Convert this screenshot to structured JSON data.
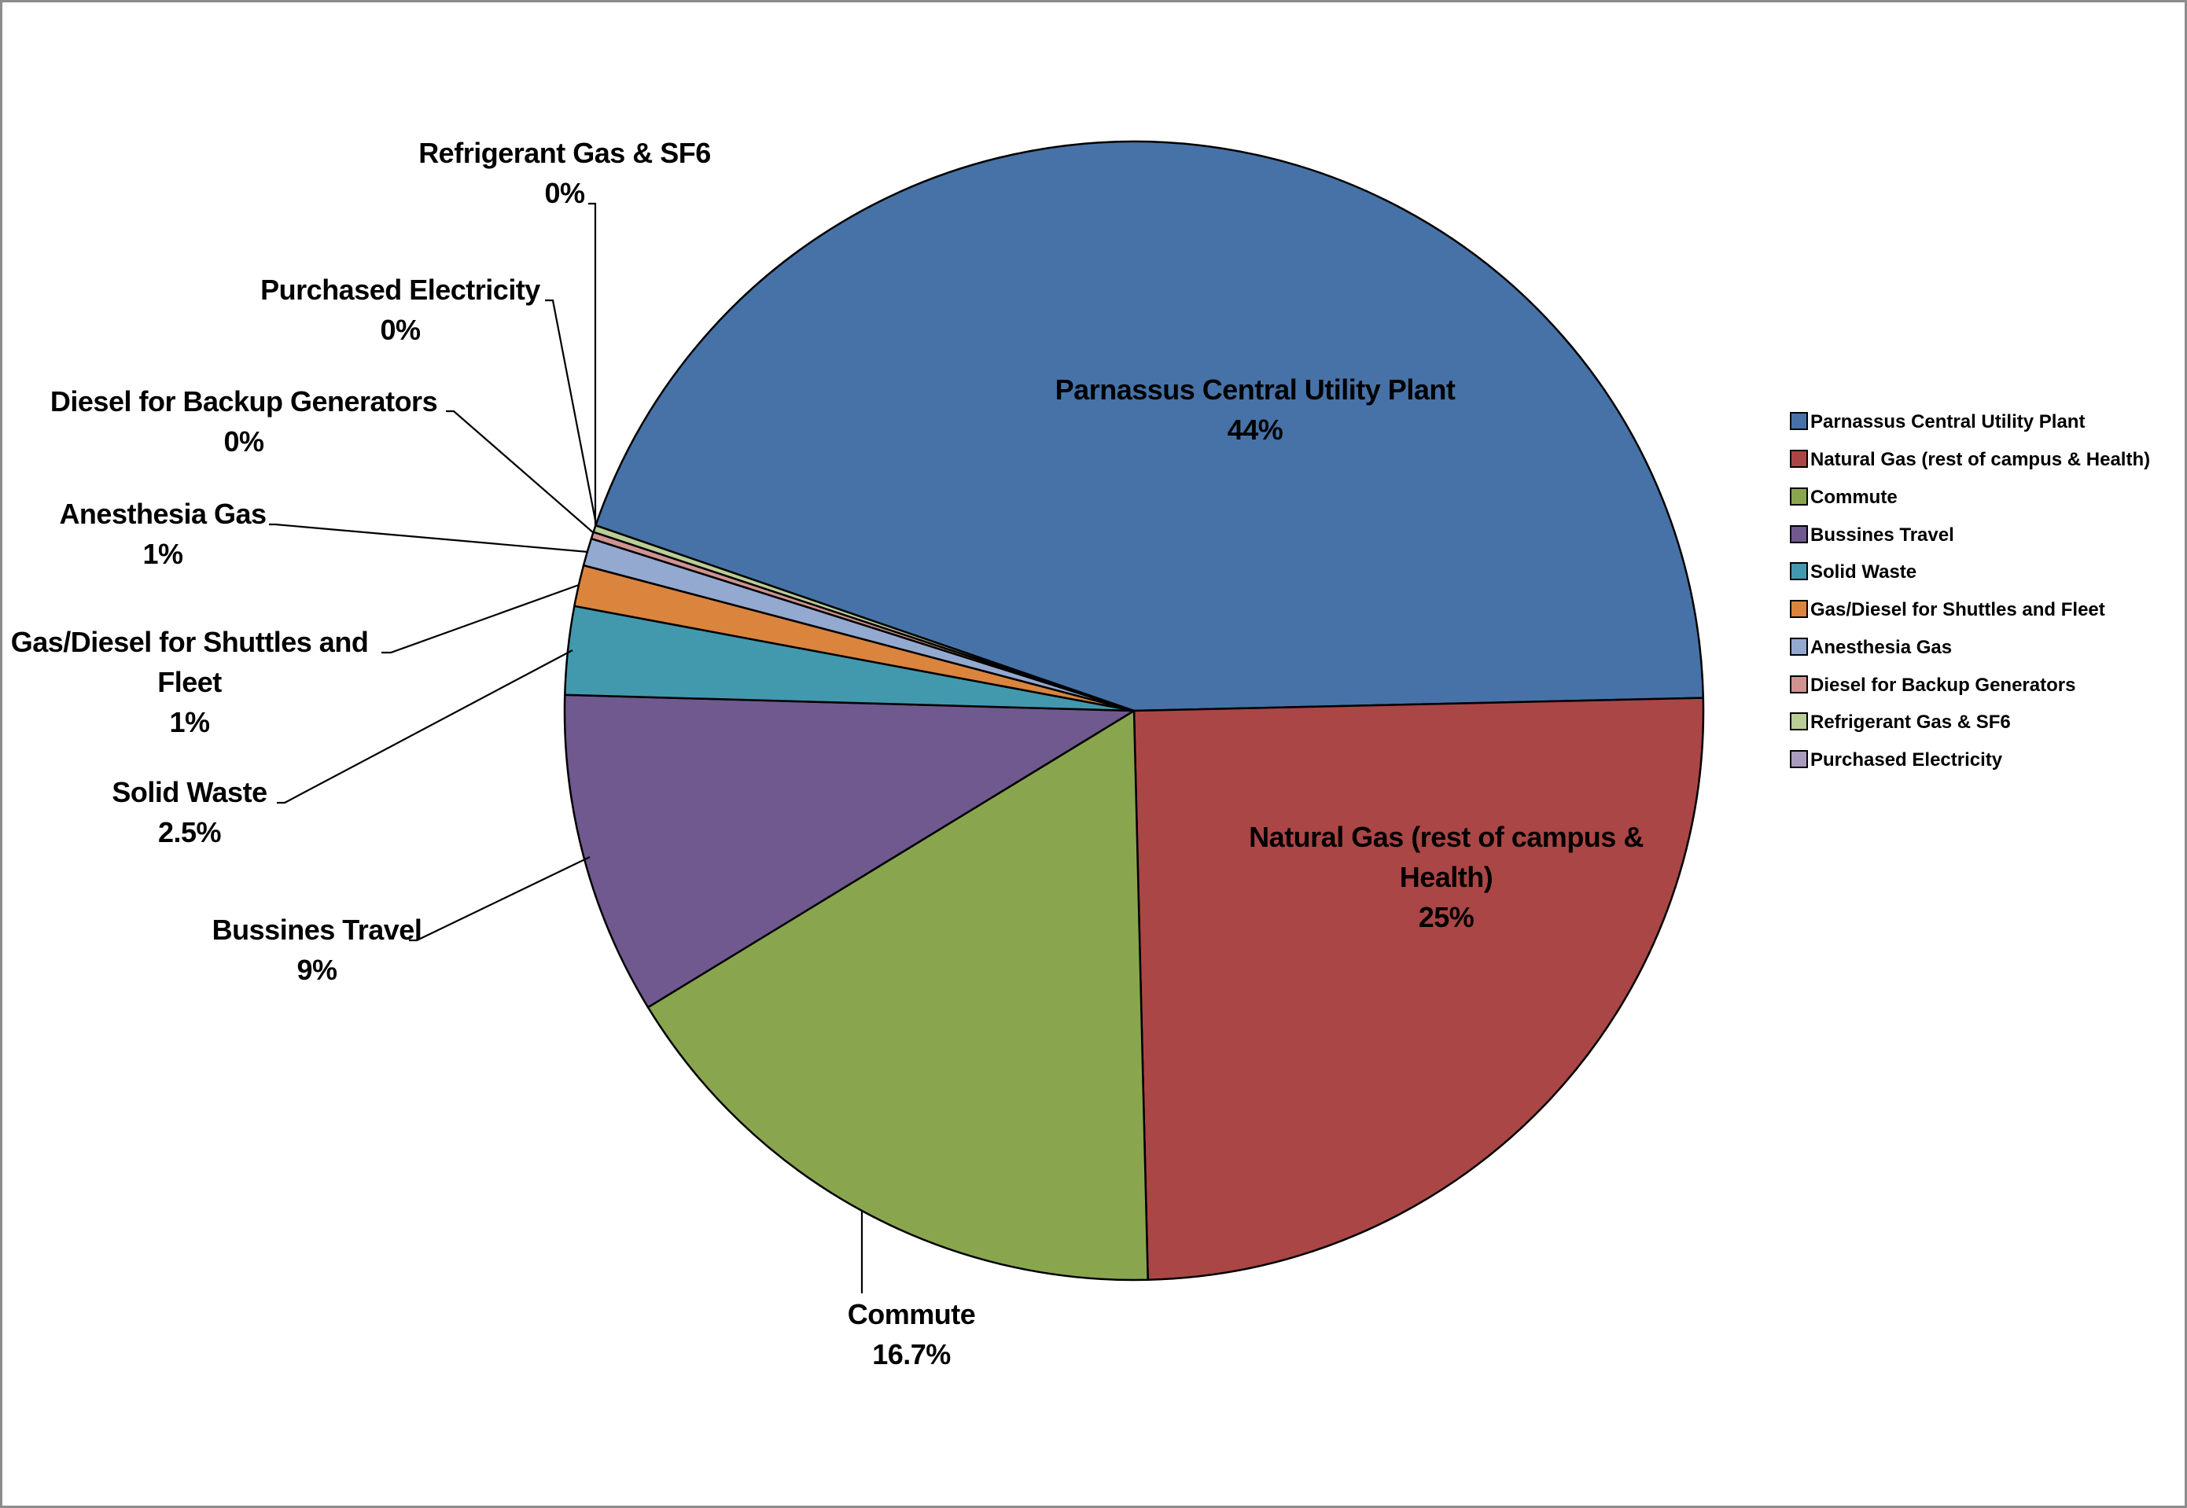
{
  "chart_data": {
    "type": "pie",
    "title": "",
    "start_angle_deg": 199.0,
    "direction": "clockwise",
    "categories": [
      "Parnassus Central Utility Plant",
      "Natural Gas (rest of campus & Health)",
      "Commute",
      "Bussines Travel",
      "Solid Waste",
      "Gas/Diesel for Shuttles and Fleet",
      "Anesthesia Gas",
      "Diesel for Backup Generators",
      "Refrigerant Gas & SF6",
      "Purchased Electricity"
    ],
    "values": [
      44.4,
      25.0,
      16.7,
      9.2,
      2.5,
      1.2,
      0.75,
      0.2,
      0.2,
      0.0
    ],
    "labels": [
      "44%",
      "25%",
      "16.7%",
      "9%",
      "2.5%",
      "1%",
      "1%",
      "0%",
      "0%",
      "0%"
    ],
    "colors": [
      "#4672a7",
      "#aa4645",
      "#89a64f",
      "#6f598f",
      "#4299ae",
      "#db843d",
      "#93a9d0",
      "#d09392",
      "#b9cd96",
      "#a99bbd"
    ],
    "legend_position": "right",
    "data_labels": "category name + percentage, outside with leader lines for small slices"
  },
  "slices": [
    {
      "name": "Parnassus Central Utility Plant",
      "pct": "44%",
      "color": "#4672a7",
      "from": 199.0,
      "to": 358.7
    },
    {
      "name": "Natural Gas (rest of campus & Health)",
      "pct": "25%",
      "color": "#aa4645",
      "from": 358.7,
      "to": 448.6
    },
    {
      "name": "Commute",
      "pct": "16.7%",
      "color": "#89a64f",
      "from": 88.6,
      "to": 148.6
    },
    {
      "name": "Bussines Travel",
      "pct": "9%",
      "color": "#6f598f",
      "from": 148.6,
      "to": 181.6
    },
    {
      "name": "Solid Waste",
      "pct": "2.5%",
      "color": "#4299ae",
      "from": 181.6,
      "to": 190.6
    },
    {
      "name": "Gas/Diesel for Shuttles and Fleet",
      "pct": "1%",
      "color": "#db843d",
      "from": 190.6,
      "to": 194.8
    },
    {
      "name": "Anesthesia Gas",
      "pct": "1%",
      "color": "#93a9d0",
      "from": 194.8,
      "to": 197.6
    },
    {
      "name": "Diesel for Backup Generators",
      "pct": "0%",
      "color": "#d09392",
      "from": 197.6,
      "to": 198.3
    },
    {
      "name": "Refrigerant Gas & SF6",
      "pct": "0%",
      "color": "#b9cd96",
      "from": 198.3,
      "to": 199.0
    },
    {
      "name": "Purchased Electricity",
      "pct": "0%",
      "color": "#a99bbd",
      "from": 199.0,
      "to": 199.0
    }
  ],
  "data_labels": {
    "parnassus": {
      "line1": "Parnassus Central Utility Plant",
      "line2": "44%"
    },
    "natural_gas": {
      "line1": "Natural Gas (rest of campus &",
      "line2": "Health)",
      "line3": "25%"
    },
    "commute": {
      "line1": "Commute",
      "line2": "16.7%"
    },
    "bussines": {
      "line1": "Bussines Travel",
      "line2": "9%"
    },
    "solid_waste": {
      "line1": "Solid Waste",
      "line2": "2.5%"
    },
    "gas_diesel": {
      "line1": "Gas/Diesel for Shuttles and",
      "line2": "Fleet",
      "line3": "1%"
    },
    "anesthesia": {
      "line1": "Anesthesia Gas",
      "line2": "1%"
    },
    "diesel_backup": {
      "line1": "Diesel for Backup Generators",
      "line2": "0%"
    },
    "purchased": {
      "line1": "Purchased Electricity",
      "line2": "0%"
    },
    "refrigerant": {
      "line1": "Refrigerant Gas & SF6",
      "line2": "0%"
    }
  },
  "legend": {
    "items": [
      {
        "label": "Parnassus Central Utility Plant",
        "color": "#4672a7"
      },
      {
        "label": "Natural Gas (rest of campus & Health)",
        "color": "#aa4645"
      },
      {
        "label": "Commute",
        "color": "#89a64f"
      },
      {
        "label": "Bussines Travel",
        "color": "#6f598f"
      },
      {
        "label": "Solid Waste",
        "color": "#4299ae"
      },
      {
        "label": "Gas/Diesel for Shuttles and Fleet",
        "color": "#db843d"
      },
      {
        "label": "Anesthesia Gas",
        "color": "#93a9d0"
      },
      {
        "label": "Diesel for Backup Generators",
        "color": "#d09392"
      },
      {
        "label": "Refrigerant Gas & SF6",
        "color": "#b9cd96"
      },
      {
        "label": "Purchased Electricity",
        "color": "#a99bbd"
      }
    ]
  }
}
